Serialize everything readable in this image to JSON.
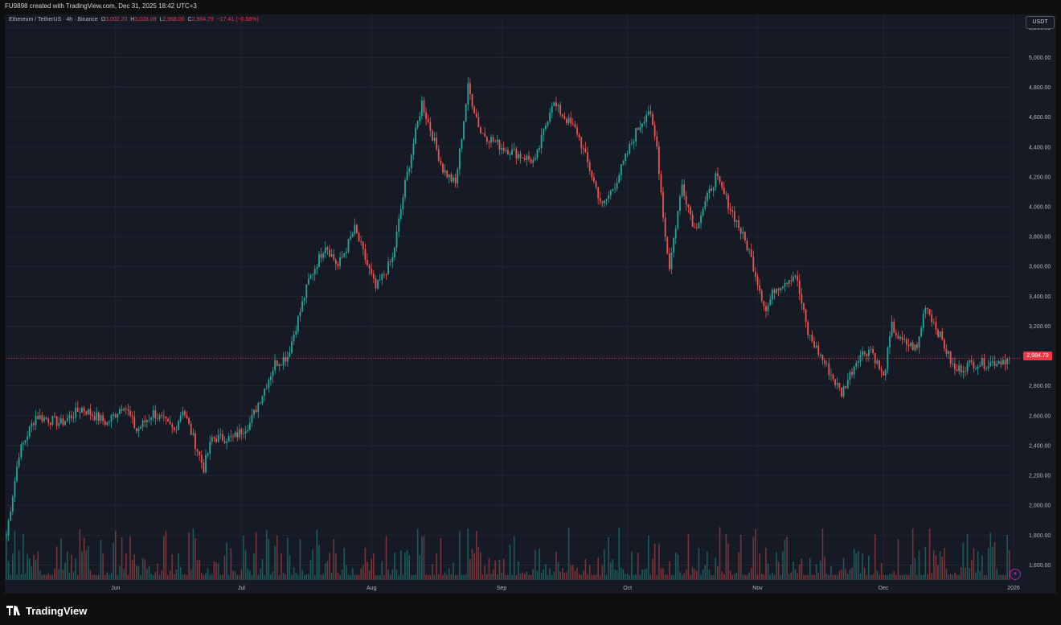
{
  "header": {
    "attribution": "FU9898 created with TradingView.com, Dec 31, 2025 18:42 UTC+3"
  },
  "legend": {
    "symbol": "Ethereum / TetherUS · 4h · Binance",
    "o_label": "O",
    "o_value": "3,002.20",
    "h_label": "H",
    "h_value": "3,028.08",
    "l_label": "L",
    "l_value": "2,968.00",
    "c_label": "C",
    "c_value": "2,984.79",
    "change": "−17.41 (−0.58%)"
  },
  "price_axis": {
    "currency": "USDT",
    "last_price": "2,984.79"
  },
  "footer": {
    "brand": "TradingView"
  },
  "colors": {
    "up": "#26a69a",
    "down": "#ef5350",
    "background": "#161a25",
    "grid": "#212532",
    "last_price": "#f23645"
  },
  "chart_data": {
    "type": "line",
    "title": "Ethereum / TetherUS · 4h · Binance",
    "series_kind": "candlestick-close-approximation",
    "ylim": [
      1500,
      5250
    ],
    "y_ticks": [
      1600,
      1800,
      2000,
      2200,
      2400,
      2600,
      2800,
      3000,
      3200,
      3400,
      3600,
      3800,
      4000,
      4200,
      4400,
      4600,
      4800,
      5000,
      5200
    ],
    "y_tick_labels": [
      "1,600.00",
      "1,800.00",
      "2,000.00",
      "2,200.00",
      "2,400.00",
      "2,600.00",
      "2,800.00",
      "3,000.00",
      "3,200.00",
      "3,400.00",
      "3,600.00",
      "3,800.00",
      "4,000.00",
      "4,200.00",
      "4,400.00",
      "4,600.00",
      "4,800.00",
      "5,000.00",
      "5,200.00"
    ],
    "x_tick_labels": [
      "Jun",
      "Jul",
      "Aug",
      "Sep",
      "Oct",
      "Nov",
      "Dec",
      "2026"
    ],
    "x_tick_dates": [
      "2025-06-01",
      "2025-07-01",
      "2025-08-01",
      "2025-09-01",
      "2025-10-01",
      "2025-11-01",
      "2025-12-01",
      "2026-01-01"
    ],
    "x_range": [
      "2025-05-06",
      "2026-01-01"
    ],
    "last_price": 2984.79,
    "series": [
      {
        "date": [
          "2025-05-06",
          "2025-05-09",
          "2025-05-13",
          "2025-05-19",
          "2025-05-24",
          "2025-05-30",
          "2025-06-03",
          "2025-06-06",
          "2025-06-10",
          "2025-06-13",
          "2025-06-15",
          "2025-06-17",
          "2025-06-22",
          "2025-06-24",
          "2025-06-29",
          "2025-07-03",
          "2025-07-09",
          "2025-07-12",
          "2025-07-17",
          "2025-07-21",
          "2025-07-24",
          "2025-07-28",
          "2025-08-02",
          "2025-08-06",
          "2025-08-09",
          "2025-08-13",
          "2025-08-18",
          "2025-08-21",
          "2025-08-24",
          "2025-08-27",
          "2025-09-01",
          "2025-09-05",
          "2025-09-09",
          "2025-09-13",
          "2025-09-19",
          "2025-09-25",
          "2025-09-28",
          "2025-10-03",
          "2025-10-06",
          "2025-10-08",
          "2025-10-10",
          "2025-10-11",
          "2025-10-14",
          "2025-10-17",
          "2025-10-22",
          "2025-10-27",
          "2025-10-30",
          "2025-11-03",
          "2025-11-05",
          "2025-11-10",
          "2025-11-13",
          "2025-11-17",
          "2025-11-21",
          "2025-11-25",
          "2025-11-28",
          "2025-12-01",
          "2025-12-03",
          "2025-12-05",
          "2025-12-09",
          "2025-12-11",
          "2025-12-15",
          "2025-12-18",
          "2025-12-22",
          "2025-12-26",
          "2025-12-31"
        ],
        "close": [
          1800,
          2350,
          2600,
          2550,
          2650,
          2550,
          2680,
          2500,
          2620,
          2550,
          2500,
          2650,
          2250,
          2450,
          2450,
          2550,
          2950,
          3000,
          3500,
          3750,
          3600,
          3850,
          3450,
          3650,
          4150,
          4700,
          4250,
          4150,
          4800,
          4500,
          4400,
          4350,
          4300,
          4700,
          4500,
          4000,
          4150,
          4500,
          4650,
          4400,
          3800,
          3600,
          4150,
          3850,
          4200,
          3900,
          3700,
          3300,
          3450,
          3550,
          3150,
          2950,
          2750,
          3000,
          3050,
          2850,
          3200,
          3100,
          3050,
          3350,
          3100,
          2900,
          2950,
          2950,
          2984.79
        ]
      }
    ]
  }
}
